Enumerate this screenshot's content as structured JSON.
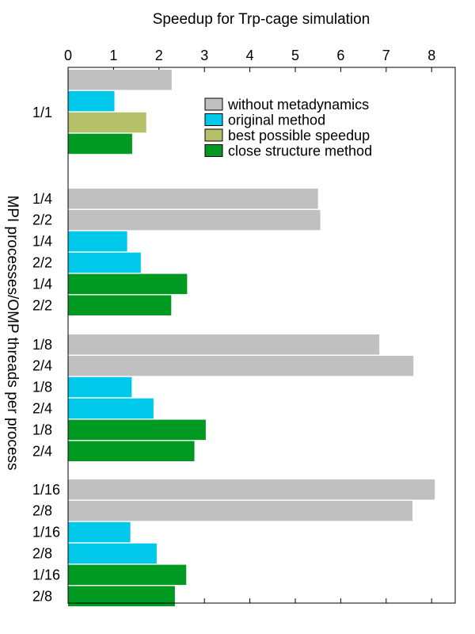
{
  "chart_data": {
    "type": "bar",
    "orientation": "horizontal",
    "title": "Speedup for Trp-cage simulation",
    "xlabel": "Speedup for Trp-cage simulation",
    "ylabel": "MPI processes/OMP threads per process",
    "xlim": [
      0,
      8.5
    ],
    "xticks": [
      0,
      1,
      2,
      3,
      4,
      5,
      6,
      7,
      8
    ],
    "legend_position": "top-right",
    "series": [
      {
        "key": "without",
        "name": "without metadynamics",
        "color": "#c0c0c0"
      },
      {
        "key": "original",
        "name": "original method",
        "color": "#00c8ea"
      },
      {
        "key": "best",
        "name": "best possible speedup",
        "color": "#b6c069"
      },
      {
        "key": "close",
        "name": "close structure method",
        "color": "#009a22"
      }
    ],
    "groups": [
      {
        "bars": [
          {
            "label": "",
            "series": "without",
            "value": 2.28
          },
          {
            "label": "",
            "series": "original",
            "value": 1.02
          },
          {
            "label": "",
            "series": "best",
            "value": 1.72
          },
          {
            "label": "",
            "series": "close",
            "value": 1.41
          }
        ],
        "group_label": "1/1"
      },
      {
        "bars": [
          {
            "label": "1/4",
            "series": "without",
            "value": 5.5
          },
          {
            "label": "2/2",
            "series": "without",
            "value": 5.55
          },
          {
            "label": "1/4",
            "series": "original",
            "value": 1.3
          },
          {
            "label": "2/2",
            "series": "original",
            "value": 1.6
          },
          {
            "label": "1/4",
            "series": "close",
            "value": 2.62
          },
          {
            "label": "2/2",
            "series": "close",
            "value": 2.27
          }
        ]
      },
      {
        "bars": [
          {
            "label": "1/8",
            "series": "without",
            "value": 6.85
          },
          {
            "label": "2/4",
            "series": "without",
            "value": 7.6
          },
          {
            "label": "1/8",
            "series": "original",
            "value": 1.4
          },
          {
            "label": "2/4",
            "series": "original",
            "value": 1.88
          },
          {
            "label": "1/8",
            "series": "close",
            "value": 3.03
          },
          {
            "label": "2/4",
            "series": "close",
            "value": 2.78
          }
        ]
      },
      {
        "bars": [
          {
            "label": "1/16",
            "series": "without",
            "value": 8.07
          },
          {
            "label": "2/8",
            "series": "without",
            "value": 7.58
          },
          {
            "label": "1/16",
            "series": "original",
            "value": 1.37
          },
          {
            "label": "2/8",
            "series": "original",
            "value": 1.95
          },
          {
            "label": "1/16",
            "series": "close",
            "value": 2.6
          },
          {
            "label": "2/8",
            "series": "close",
            "value": 2.35
          }
        ]
      }
    ]
  }
}
